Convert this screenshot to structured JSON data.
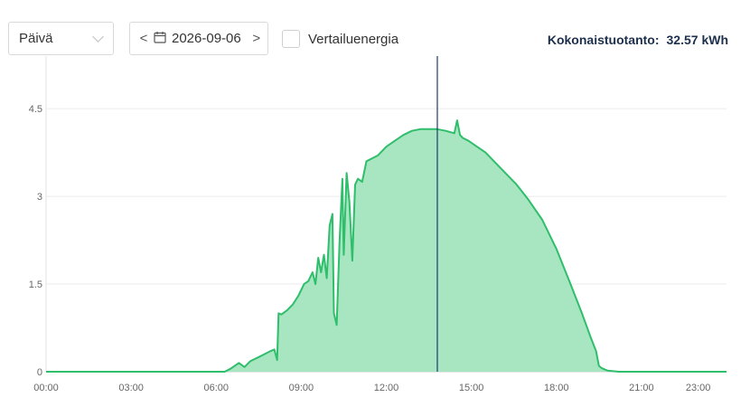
{
  "period_select": {
    "value": "Päivä"
  },
  "date_nav": {
    "date": "2026-09-06",
    "prev_label": "<",
    "next_label": ">"
  },
  "comparison": {
    "label": "Vertailuenergia",
    "checked": false
  },
  "total": {
    "label": "Kokonaistuotanto:",
    "value": "32.57 kWh"
  },
  "colors": {
    "fill": "#a8e6c2",
    "line": "#2fbe6b",
    "cursor": "#1d3a6a",
    "grid": "#ebebeb"
  },
  "chart_data": {
    "type": "area",
    "xlabel": "",
    "ylabel": "",
    "x_ticks": [
      "00:00",
      "03:00",
      "06:00",
      "09:00",
      "12:00",
      "15:00",
      "18:00",
      "21:00",
      "23:00"
    ],
    "y_ticks": [
      "0",
      "1.5",
      "3",
      "4.5"
    ],
    "xlim": [
      0,
      24
    ],
    "ylim": [
      0,
      5.4
    ],
    "grid": "horizontal",
    "cursor_time": 13.8,
    "series": [
      {
        "x": [
          0,
          6.3,
          6.5,
          6.8,
          7.0,
          7.2,
          7.5,
          7.7,
          7.9,
          8.05,
          8.15,
          8.2,
          8.3,
          8.5,
          8.7,
          8.9,
          9.0,
          9.1,
          9.25,
          9.4,
          9.5,
          9.6,
          9.7,
          9.8,
          9.9,
          10.0,
          10.1,
          10.15,
          10.25,
          10.35,
          10.45,
          10.5,
          10.6,
          10.7,
          10.8,
          10.9,
          11.0,
          11.15,
          11.3,
          11.5,
          11.7,
          12.0,
          12.3,
          12.6,
          12.9,
          13.2,
          13.5,
          13.8,
          14.1,
          14.4,
          14.5,
          14.6,
          14.7,
          14.9,
          15.2,
          15.5,
          15.8,
          16.2,
          16.6,
          17.0,
          17.5,
          18.0,
          18.5,
          18.9,
          19.2,
          19.4,
          19.5,
          19.6,
          19.7,
          19.8,
          20.0,
          20.2,
          20.5,
          24
        ],
        "y": [
          0,
          0,
          0.05,
          0.15,
          0.08,
          0.18,
          0.25,
          0.3,
          0.35,
          0.38,
          0.2,
          1.0,
          0.98,
          1.05,
          1.15,
          1.3,
          1.4,
          1.5,
          1.55,
          1.7,
          1.5,
          1.95,
          1.7,
          2.0,
          1.6,
          2.5,
          2.7,
          1.0,
          0.8,
          2.2,
          3.3,
          2.0,
          3.4,
          2.9,
          1.9,
          3.2,
          3.3,
          3.25,
          3.6,
          3.65,
          3.7,
          3.85,
          3.95,
          4.05,
          4.12,
          4.15,
          4.15,
          4.15,
          4.12,
          4.08,
          4.3,
          4.05,
          4.0,
          3.95,
          3.85,
          3.75,
          3.6,
          3.4,
          3.2,
          2.95,
          2.6,
          2.1,
          1.5,
          1.0,
          0.6,
          0.35,
          0.1,
          0.06,
          0.04,
          0.02,
          0.01,
          0,
          0,
          0
        ]
      }
    ]
  }
}
